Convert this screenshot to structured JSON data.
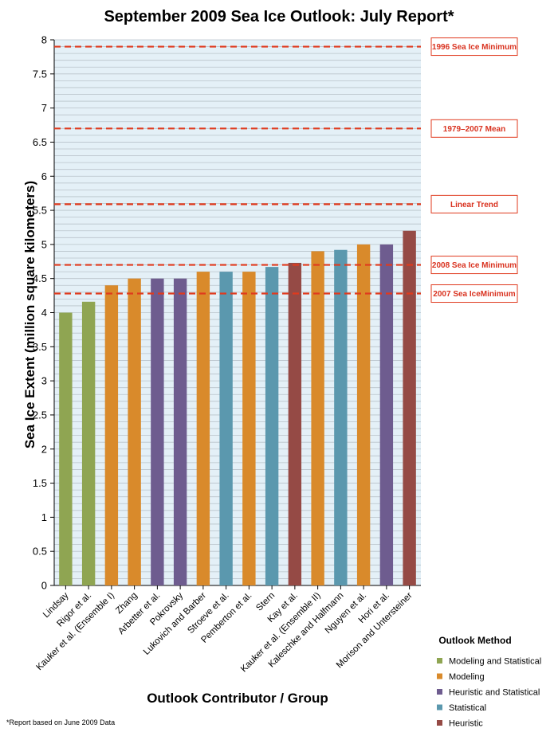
{
  "chart_data": {
    "type": "bar",
    "title": "September 2009 Sea Ice Outlook: July Report*",
    "xlabel": "Outlook Contributor / Group",
    "ylabel": "Sea Ice Extent (million square kilometers)",
    "ylim": [
      0,
      8
    ],
    "yticks": [
      "0",
      "0.5",
      "1",
      "1.5",
      "2",
      "2.5",
      "3",
      "3.5",
      "4",
      "4.5",
      "5",
      "5.5",
      "6",
      "6.5",
      "7",
      "7.5",
      "8"
    ],
    "minor_grid_step": 0.1,
    "grid": true,
    "categories": [
      "Lindsay",
      "Rigor et al.",
      "Kauker et al. (Ensemble I)",
      "Zhang",
      "Arbetter et al.",
      "Pokrovsky",
      "Lukovich and Barber",
      "Stroeve et al.",
      "Pemberton et al.",
      "Stern",
      "Kay et al.",
      "Kauker et al. (Ensemble II)",
      "Kaleschke and Halfmann",
      "Nguyen et al.",
      "Hori et al.",
      "Morison and Untersteiner"
    ],
    "values": [
      4.0,
      4.16,
      4.4,
      4.5,
      4.5,
      4.5,
      4.6,
      4.6,
      4.6,
      4.67,
      4.73,
      4.9,
      4.92,
      5.0,
      5.0,
      5.2
    ],
    "methods": [
      "Modeling and Statistical",
      "Modeling and Statistical",
      "Modeling",
      "Modeling",
      "Heuristic and Statistical",
      "Heuristic and Statistical",
      "Modeling",
      "Statistical",
      "Modeling",
      "Statistical",
      "Heuristic",
      "Modeling",
      "Statistical",
      "Modeling",
      "Heuristic and Statistical",
      "Heuristic"
    ],
    "reference_lines": [
      {
        "label": "1996 Sea Ice Minimum",
        "value": 7.9
      },
      {
        "label": "1979–2007 Mean",
        "value": 6.7
      },
      {
        "label": "Linear Trend",
        "value": 5.59
      },
      {
        "label": "2008 Sea Ice Minimum",
        "value": 4.7
      },
      {
        "label": "2007 Sea IceMinimum",
        "value": 4.28
      }
    ],
    "reference_line_color": "#e03a1e",
    "legend": {
      "title": "Outlook Method",
      "position": "bottom-right",
      "entries": [
        {
          "name": "Modeling and Statistical",
          "color": "#8fa552"
        },
        {
          "name": "Modeling",
          "color": "#d98a2b"
        },
        {
          "name": "Heuristic and Statistical",
          "color": "#6e5c8f"
        },
        {
          "name": "Statistical",
          "color": "#5b98ae"
        },
        {
          "name": "Heuristic",
          "color": "#954a45"
        }
      ]
    },
    "plot_background": "#e4f0f7",
    "grid_color": "#b9c3ca",
    "footnote": "*Report based on June 2009 Data"
  }
}
